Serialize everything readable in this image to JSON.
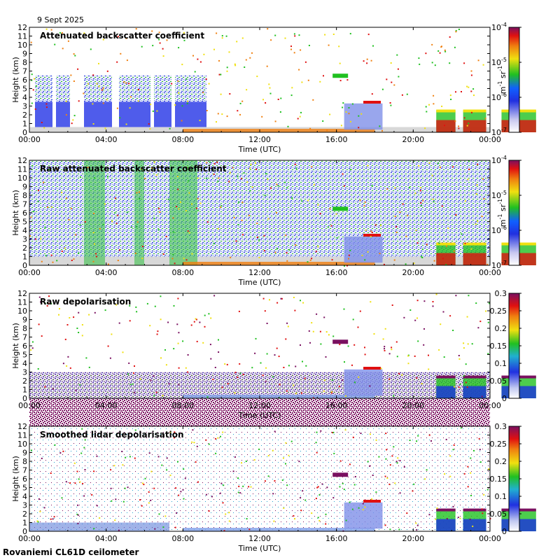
{
  "date_label": "9 Sept 2025",
  "footer_label": "Rovaniemi CL61D ceilometer",
  "colors": {
    "blue": "#1a2fe0",
    "lightblue": "#7f9fe8",
    "green": "#20c020",
    "yellow": "#f0e010",
    "orange": "#f08010",
    "red": "#e01010",
    "purple": "#7a1060",
    "grey": "#d8d8d8"
  },
  "chart_data": [
    {
      "type": "heatmap",
      "title": "Attenuated backscatter coefficient",
      "xlabel": "Time (UTC)",
      "ylabel": "Height (km)",
      "x_ticks": [
        "00:00",
        "04:00",
        "08:00",
        "12:00",
        "16:00",
        "20:00",
        "00:00"
      ],
      "y_ticks": [
        "0",
        "1",
        "2",
        "3",
        "4",
        "5",
        "6",
        "7",
        "8",
        "9",
        "10",
        "11",
        "12"
      ],
      "ylim": [
        0,
        12
      ],
      "colorbar": {
        "scale": "log",
        "range": [
          1e-07,
          0.0001
        ],
        "ticks": [
          "10",
          "10",
          "10",
          "10"
        ],
        "tick_exponents": [
          "-4",
          "-5",
          "-6",
          "-7"
        ],
        "unit_parts": [
          "m",
          "-1",
          " sr",
          "-1"
        ]
      }
    },
    {
      "type": "heatmap",
      "title": "Raw attenuated backscatter coefficient",
      "xlabel": "Time (UTC)",
      "ylabel": "Height (km)",
      "x_ticks": [
        "00:00",
        "04:00",
        "08:00",
        "12:00",
        "16:00",
        "20:00",
        "00:00"
      ],
      "y_ticks": [
        "0",
        "1",
        "2",
        "3",
        "4",
        "5",
        "6",
        "7",
        "8",
        "9",
        "10",
        "11",
        "12"
      ],
      "ylim": [
        0,
        12
      ],
      "colorbar": {
        "scale": "log",
        "range": [
          1e-07,
          0.0001
        ],
        "ticks": [
          "10",
          "10",
          "10",
          "10"
        ],
        "tick_exponents": [
          "-4",
          "-5",
          "-6",
          "-7"
        ],
        "unit_parts": [
          "m",
          "-1",
          " sr",
          "-1"
        ]
      }
    },
    {
      "type": "heatmap",
      "title": "Raw depolarisation",
      "xlabel": "Time (UTC)",
      "ylabel": "Height (km)",
      "x_ticks": [
        "00:00",
        "04:00",
        "08:00",
        "12:00",
        "16:00",
        "20:00",
        "00:00"
      ],
      "y_ticks": [
        "0",
        "1",
        "2",
        "3",
        "4",
        "5",
        "6",
        "7",
        "8",
        "9",
        "10",
        "11",
        "12"
      ],
      "ylim": [
        0,
        12
      ],
      "colorbar": {
        "scale": "linear",
        "range": [
          0,
          0.3
        ],
        "ticks": [
          "0.3",
          "0.25",
          "0.2",
          "0.15",
          "0.1",
          "0.05",
          "0"
        ]
      }
    },
    {
      "type": "heatmap",
      "title": "Smoothed lidar depolarisation",
      "xlabel": "Time (UTC)",
      "ylabel": "Height (km)",
      "x_ticks": [
        "00:00",
        "04:00",
        "08:00",
        "12:00",
        "16:00",
        "20:00",
        "00:00"
      ],
      "y_ticks": [
        "0",
        "1",
        "2",
        "3",
        "4",
        "5",
        "6",
        "7",
        "8",
        "9",
        "10",
        "11",
        "12"
      ],
      "ylim": [
        0,
        12
      ],
      "colorbar": {
        "scale": "linear",
        "range": [
          0,
          0.3
        ],
        "ticks": [
          "0.3",
          "0.25",
          "0.2",
          "0.15",
          "0.1",
          "0.05",
          "0"
        ]
      }
    }
  ]
}
